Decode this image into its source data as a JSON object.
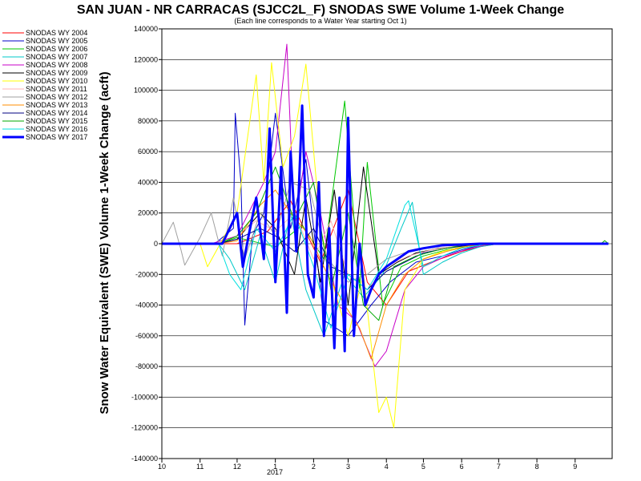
{
  "chart_data": {
    "type": "line",
    "title": "SAN JUAN - NR CARRACAS (SJCC2L_F) SNODAS SWE Volume 1-Week Change",
    "subtitle": "(Each line corresponds to a Water Year starting Oct 1)",
    "ylabel": "Snow Water Equivalent (SWE) Volume 1-Week Change (acft)",
    "xlabel": "",
    "x_ticks": [
      "10",
      "11",
      "12",
      "1",
      "2",
      "3",
      "4",
      "5",
      "6",
      "7",
      "8",
      "9"
    ],
    "x_year_label": "2017",
    "ylim": [
      -140000,
      140000
    ],
    "y_ticks": [
      140000,
      120000,
      100000,
      80000,
      60000,
      40000,
      20000,
      0,
      -20000,
      -40000,
      -60000,
      -80000,
      -100000,
      -120000,
      -140000
    ],
    "grid": true,
    "legend_position": "top-left",
    "series": [
      {
        "name": "SNODAS WY 2004",
        "color": "#ff0000",
        "x": [
          10.0,
          11.5,
          12.0,
          12.8,
          1.4,
          2.2,
          3.0,
          3.5,
          4.0,
          4.6,
          5.2,
          6.0,
          6.5,
          7.0
        ],
        "y": [
          0,
          0,
          0,
          8000,
          28000,
          -12000,
          35000,
          -25000,
          -40000,
          -18000,
          -12000,
          -5000,
          -2000,
          0
        ]
      },
      {
        "name": "SNODAS WY 2005",
        "color": "#0000c8",
        "x": [
          10.0,
          11.4,
          11.9,
          11.95,
          12.1,
          12.2,
          12.4,
          12.7,
          1.0,
          1.4,
          1.8,
          2.3,
          3.0,
          3.6,
          4.1,
          4.8,
          5.5,
          6.0,
          6.5,
          7.0
        ],
        "y": [
          0,
          0,
          10000,
          85000,
          40000,
          -53000,
          5000,
          20000,
          85000,
          10000,
          55000,
          -50000,
          -60000,
          -40000,
          -25000,
          -12000,
          -8000,
          -4000,
          -1000,
          0
        ]
      },
      {
        "name": "SNODAS WY 2006",
        "color": "#00c800",
        "x": [
          10.0,
          11.5,
          12.0,
          1.0,
          1.7,
          2.3,
          2.9,
          3.3,
          3.5,
          3.9,
          4.4,
          5.0,
          5.6,
          6.2,
          7.0
        ],
        "y": [
          0,
          0,
          4000,
          -2000,
          12000,
          -10000,
          93000,
          -30000,
          53000,
          -40000,
          -15000,
          -8000,
          -4000,
          -1500,
          0
        ]
      },
      {
        "name": "SNODAS WY 2007",
        "color": "#00c8c8",
        "x": [
          10.0,
          11.5,
          11.8,
          12.2,
          12.6,
          1.0,
          1.4,
          1.8,
          2.3,
          2.9,
          3.4,
          3.9,
          4.4,
          4.7,
          5.0,
          5.5,
          6.0,
          6.5,
          7.0
        ],
        "y": [
          0,
          0,
          -10000,
          -30000,
          5000,
          -25000,
          20000,
          -30000,
          -60000,
          -20000,
          -35000,
          -20000,
          10000,
          27000,
          -20000,
          -12000,
          -6000,
          -2000,
          0
        ]
      },
      {
        "name": "SNODAS WY 2008",
        "color": "#c800c8",
        "x": [
          10.0,
          11.3,
          12.0,
          12.7,
          1.0,
          1.3,
          1.5,
          1.8,
          2.2,
          2.7,
          3.2,
          3.7,
          4.0,
          4.5,
          5.0,
          5.6,
          6.1,
          6.6,
          7.0
        ],
        "y": [
          0,
          0,
          5000,
          40000,
          60000,
          130000,
          10000,
          60000,
          20000,
          -40000,
          -50000,
          -80000,
          -70000,
          -30000,
          -15000,
          -8000,
          -4000,
          -1000,
          0
        ]
      },
      {
        "name": "SNODAS WY 2009",
        "color": "#000000",
        "x": [
          10.0,
          11.5,
          12.0,
          12.6,
          1.0,
          1.5,
          1.8,
          2.2,
          2.6,
          3.0,
          3.4,
          3.8,
          4.3,
          4.8,
          5.4,
          6.0,
          6.6,
          7.0
        ],
        "y": [
          0,
          0,
          3000,
          20000,
          10000,
          -20000,
          30000,
          -25000,
          35000,
          -40000,
          50000,
          -20000,
          -12000,
          -6000,
          -3000,
          -1500,
          0,
          0
        ]
      },
      {
        "name": "SNODAS WY 2010",
        "color": "#ffff00",
        "x": [
          10.0,
          11.0,
          11.2,
          12.0,
          12.5,
          12.7,
          12.9,
          1.2,
          1.5,
          1.8,
          2.2,
          2.6,
          3.0,
          3.4,
          3.8,
          4.0,
          4.2,
          4.5,
          5.0,
          5.5,
          6.0,
          6.5,
          7.0
        ],
        "y": [
          0,
          0,
          -15000,
          20000,
          110000,
          40000,
          118000,
          50000,
          70000,
          117000,
          10000,
          -30000,
          -60000,
          -20000,
          -110000,
          -100000,
          -120000,
          -30000,
          -10000,
          -5000,
          -2000,
          0,
          0
        ]
      },
      {
        "name": "SNODAS WY 2011",
        "color": "#ffb4b4",
        "x": [
          10.0,
          11.5,
          12.0,
          12.5,
          1.0,
          1.5,
          2.0,
          2.5,
          3.0,
          3.5,
          4.0,
          4.6,
          5.2,
          6.0,
          6.6,
          7.0
        ],
        "y": [
          0,
          0,
          5000,
          15000,
          8000,
          20000,
          -10000,
          15000,
          -20000,
          -30000,
          -15000,
          -8000,
          -4000,
          -1000,
          0,
          0
        ]
      },
      {
        "name": "SNODAS WY 2012",
        "color": "#a0a0a0",
        "x": [
          10.0,
          10.3,
          10.5,
          10.6,
          11.0,
          11.3,
          11.6,
          11.9,
          12.2,
          12.6,
          1.0,
          1.4,
          1.9,
          2.4,
          3.0,
          3.5,
          4.0,
          4.6,
          5.2,
          5.8,
          6.4,
          7.0
        ],
        "y": [
          0,
          14000,
          -4000,
          -14000,
          4000,
          20000,
          -8000,
          30000,
          -10000,
          20000,
          5000,
          40000,
          35000,
          -10000,
          -25000,
          -20000,
          -10000,
          -5000,
          -2000,
          -1000,
          0,
          0
        ]
      },
      {
        "name": "SNODAS WY 2013",
        "color": "#ff8c00",
        "x": [
          10.0,
          11.5,
          12.0,
          12.6,
          1.0,
          1.4,
          1.9,
          2.4,
          2.9,
          3.3,
          3.6,
          4.0,
          4.5,
          5.0,
          5.6,
          6.2,
          7.0
        ],
        "y": [
          0,
          0,
          2000,
          25000,
          35000,
          20000,
          5000,
          -20000,
          -40000,
          -55000,
          -75000,
          -40000,
          -20000,
          -10000,
          -5000,
          -1500,
          0
        ]
      },
      {
        "name": "SNODAS WY 2014",
        "color": "#000080",
        "x": [
          10.0,
          11.5,
          12.0,
          12.6,
          1.0,
          1.5,
          2.0,
          2.5,
          3.0,
          3.5,
          4.0,
          4.5,
          5.0,
          5.6,
          6.2,
          7.0
        ],
        "y": [
          0,
          0,
          3000,
          10000,
          5000,
          -5000,
          10000,
          -15000,
          -20000,
          -30000,
          -18000,
          -12000,
          -6000,
          -3000,
          -1000,
          0
        ]
      },
      {
        "name": "SNODAS WY 2015",
        "color": "#00aa00",
        "x": [
          10.0,
          11.5,
          12.0,
          12.5,
          1.0,
          1.5,
          2.0,
          2.5,
          3.0,
          3.4,
          3.8,
          4.2,
          4.8,
          5.4,
          6.0,
          6.6,
          7.0,
          8.5,
          9.7,
          9.8,
          9.9
        ],
        "y": [
          0,
          0,
          5000,
          20000,
          50000,
          15000,
          40000,
          -30000,
          20000,
          -40000,
          -50000,
          -15000,
          -8000,
          -4000,
          -1000,
          0,
          0,
          0,
          0,
          2000,
          0
        ]
      },
      {
        "name": "SNODAS WY 2016",
        "color": "#00e0e0",
        "x": [
          10.0,
          11.5,
          11.8,
          12.1,
          12.5,
          1.0,
          1.5,
          2.0,
          2.5,
          3.0,
          3.5,
          4.0,
          4.5,
          4.6,
          5.0,
          5.5,
          6.0,
          6.6,
          7.0,
          9.9
        ],
        "y": [
          0,
          0,
          -20000,
          -30000,
          10000,
          -5000,
          20000,
          -15000,
          -55000,
          -20000,
          -30000,
          -10000,
          25000,
          28000,
          -15000,
          -8000,
          -3000,
          -500,
          0,
          0
        ]
      },
      {
        "name": "SNODAS WY 2017",
        "color": "#0000ff",
        "width": 3,
        "x": [
          10.0,
          11.1,
          11.6,
          11.8,
          12.0,
          12.15,
          12.3,
          12.5,
          12.7,
          12.85,
          1.0,
          1.15,
          1.3,
          1.4,
          1.55,
          1.7,
          1.85,
          2.0,
          2.15,
          2.3,
          2.45,
          2.6,
          2.75,
          2.9,
          3.0,
          3.15,
          3.3,
          3.45,
          3.6,
          3.8,
          4.0,
          4.3,
          4.6,
          5.0,
          5.5,
          6.0,
          6.5,
          7.0,
          9.9
        ],
        "y": [
          0,
          0,
          0,
          10000,
          20000,
          -15000,
          5000,
          30000,
          -10000,
          75000,
          -25000,
          50000,
          -45000,
          60000,
          -5000,
          90000,
          -20000,
          -35000,
          40000,
          -60000,
          10000,
          -68000,
          30000,
          -70000,
          82000,
          -60000,
          0,
          -40000,
          -30000,
          -20000,
          -15000,
          -10000,
          -5000,
          -3000,
          -1000,
          -500,
          0,
          0,
          0
        ]
      }
    ]
  }
}
